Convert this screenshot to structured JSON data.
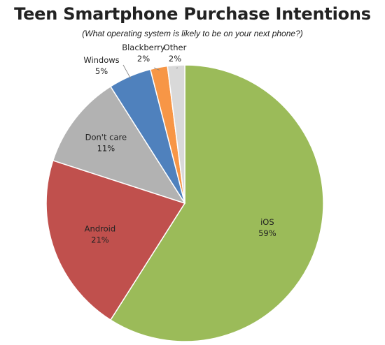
{
  "chart_data": {
    "type": "pie",
    "title": "Teen Smartphone Purchase Intentions",
    "subtitle": "(What operating system is likely to be on your next phone?)",
    "slices": [
      {
        "label": "iOS",
        "value": 59,
        "value_label": "59%",
        "color": "#9bbb59"
      },
      {
        "label": "Android",
        "value": 21,
        "value_label": "21%",
        "color": "#c0504d"
      },
      {
        "label": "Don't care",
        "value": 11,
        "value_label": "11%",
        "color": "#b2b2b2"
      },
      {
        "label": "Windows",
        "value": 5,
        "value_label": "5%",
        "color": "#4f81bd"
      },
      {
        "label": "Blackberry",
        "value": 2,
        "value_label": "2%",
        "color": "#f79646"
      },
      {
        "label": "Other",
        "value": 2,
        "value_label": "2%",
        "color": "#d9d9d9"
      }
    ],
    "start": "12 o'clock",
    "direction": "clockwise",
    "legend": "none (labels on slices)"
  }
}
